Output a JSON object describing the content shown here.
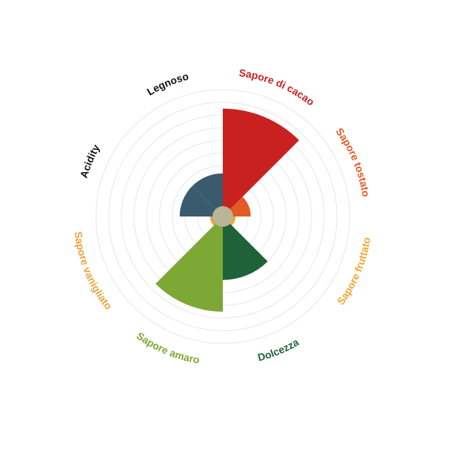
{
  "chart_data": {
    "type": "polar-area",
    "title": "",
    "grid": true,
    "rmax": 10,
    "categories": [
      {
        "label": "Sapore di cacao",
        "value": 8.5,
        "color": "#c8211f"
      },
      {
        "label": "Sapore tostato",
        "value": 2.2,
        "color": "#e35a25"
      },
      {
        "label": "Sapore fruttato",
        "value": 1.0,
        "color": "#f2a531"
      },
      {
        "label": "Dolcezza",
        "value": 5.0,
        "color": "#1f6138"
      },
      {
        "label": "Sapore amaro",
        "value": 7.5,
        "color": "#7da835"
      },
      {
        "label": "Sapore vanigliato",
        "value": 1.0,
        "color": "#e8a33d"
      },
      {
        "label": "Acidity",
        "value": 3.4,
        "color": "#3a5a6e"
      },
      {
        "label": "Legnoso",
        "value": 3.4,
        "color": "#3a5a6e"
      }
    ],
    "label_colors": [
      "#c8211f",
      "#e35a25",
      "#f2a531",
      "#1f6138",
      "#7da835",
      "#e8a33d",
      "#111111",
      "#111111"
    ],
    "hub_color": "#b9b595"
  }
}
